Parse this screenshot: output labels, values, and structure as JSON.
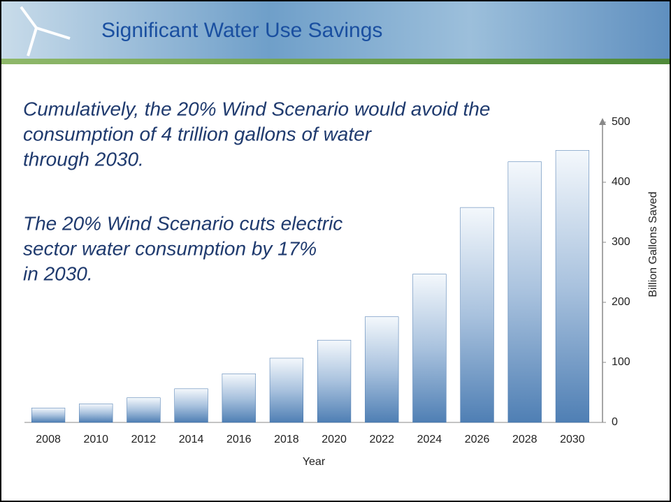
{
  "chart_data": {
    "type": "bar",
    "title": "Significant Water Use Savings",
    "annotations": [
      [
        "Cumulatively, the 20% Wind Scenario would avoid the",
        "consumption of 4 trillion gallons of water",
        "through 2030."
      ],
      [
        "The 20% Wind Scenario cuts electric",
        "sector water consumption by 17%",
        "in 2030."
      ]
    ],
    "categories": [
      "2008",
      "2010",
      "2012",
      "2014",
      "2016",
      "2018",
      "2020",
      "2022",
      "2024",
      "2026",
      "2028",
      "2030"
    ],
    "values": [
      24,
      31,
      41,
      56,
      81,
      107,
      137,
      176,
      247,
      358,
      434,
      453
    ],
    "color": "#3b6ea8",
    "ylim": [
      0,
      500
    ],
    "yticks": [
      0,
      100,
      200,
      300,
      400,
      500
    ],
    "y_label": "Billion Gallons Saved",
    "x_label": "Year"
  }
}
